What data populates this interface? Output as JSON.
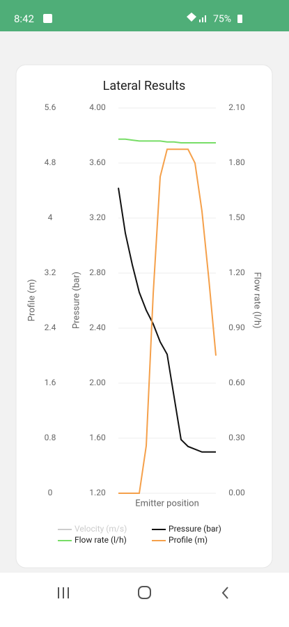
{
  "status_bar": {
    "time": "8:42",
    "battery": "75%"
  },
  "chart_data": {
    "type": "line",
    "title": "Lateral Results",
    "xlabel": "Emitter position",
    "categories": [
      null,
      null,
      null,
      null,
      null,
      null,
      null,
      null,
      null,
      null,
      null,
      null,
      null,
      null,
      null
    ],
    "ylabel": "Profile (m)",
    "ylim": [
      0,
      5.6
    ],
    "yticks": [
      0,
      0.8,
      1.6,
      2.4,
      3.2,
      4,
      4.8,
      5.6
    ],
    "y2label": "Pressure (bar)",
    "y2lim": [
      1.2,
      4.0
    ],
    "y2ticks": [
      {
        "value": 1.2,
        "label": "1.20"
      },
      {
        "value": 1.6,
        "label": "1.60"
      },
      {
        "value": 2.0,
        "label": "2.00"
      },
      {
        "value": 2.4,
        "label": "2.40"
      },
      {
        "value": 2.8,
        "label": "2.80"
      },
      {
        "value": 3.2,
        "label": "3.20"
      },
      {
        "value": 3.6,
        "label": "3.60"
      },
      {
        "value": 4.0,
        "label": "4.00"
      }
    ],
    "y3label": "Flow rate (l/h)",
    "y3lim": [
      0,
      2.1
    ],
    "y3ticks": [
      {
        "value": 0,
        "label": "0.00"
      },
      {
        "value": 0.3,
        "label": "0.30"
      },
      {
        "value": 0.6,
        "label": "0.60"
      },
      {
        "value": 0.9,
        "label": "0.90"
      },
      {
        "value": 1.2,
        "label": "1.20"
      },
      {
        "value": 1.5,
        "label": "1.50"
      },
      {
        "value": 1.8,
        "label": "1.80"
      },
      {
        "value": 2.1,
        "label": "2.10"
      }
    ],
    "grid": true,
    "series": [
      {
        "name": "Velocity (m/s)",
        "color": "#cccccc",
        "hidden": true
      },
      {
        "name": "Pressure (bar)",
        "color": "#111111",
        "axis": "y2",
        "values": [
          3.42,
          3.09,
          2.86,
          2.66,
          2.53,
          2.43,
          2.3,
          2.21,
          1.9,
          1.59,
          1.54,
          1.52,
          1.5,
          1.5,
          1.5
        ]
      },
      {
        "name": "Flow rate (l/h)",
        "color": "#77dd66",
        "axis": "y3",
        "values": [
          1.93,
          1.93,
          1.925,
          1.92,
          1.92,
          1.92,
          1.92,
          1.915,
          1.915,
          1.91,
          1.91,
          1.91,
          1.91,
          1.91,
          1.91
        ]
      },
      {
        "name": "Profile (m)",
        "color": "#f5a04a",
        "axis": "y",
        "values": [
          0,
          0,
          0,
          0,
          0.69,
          2.9,
          4.6,
          5.0,
          5.0,
          5.0,
          5.0,
          4.8,
          4.1,
          3.1,
          2.0
        ]
      }
    ]
  }
}
